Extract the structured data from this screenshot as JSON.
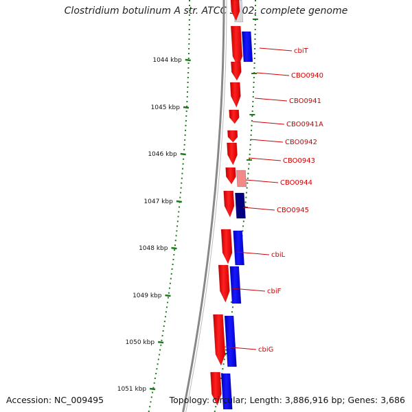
{
  "title": "Clostridium botulinum A str. ATCC 3502, complete genome",
  "footer": {
    "accession": "Accession: NC_009495",
    "topology": "Topology: circular; Length: 3,886,916 bp; Genes: 3,686"
  },
  "colors": {
    "forward": "#ff0000",
    "reverse": "#0000ff",
    "forward_light": "#f28a8a",
    "reverse_dark": "#000080",
    "label": "#cc0000",
    "tick": "#1a7a1a",
    "backbone": "#888888"
  },
  "ticks": [
    {
      "label": "1044 kbp"
    },
    {
      "label": "1045 kbp"
    },
    {
      "label": "1046 kbp"
    },
    {
      "label": "1047 kbp"
    },
    {
      "label": "1048 kbp"
    },
    {
      "label": "1049 kbp"
    },
    {
      "label": "1050 kbp"
    },
    {
      "label": "1051 kbp"
    }
  ],
  "genes": [
    {
      "name": "cbiT"
    },
    {
      "name": "CBO0940"
    },
    {
      "name": "CBO0941"
    },
    {
      "name": "CBO0941A"
    },
    {
      "name": "CBO0942"
    },
    {
      "name": "CBO0943"
    },
    {
      "name": "CBO0944"
    },
    {
      "name": "CBO0945"
    },
    {
      "name": "cbiL"
    },
    {
      "name": "cbiF"
    },
    {
      "name": "cbiG"
    }
  ]
}
